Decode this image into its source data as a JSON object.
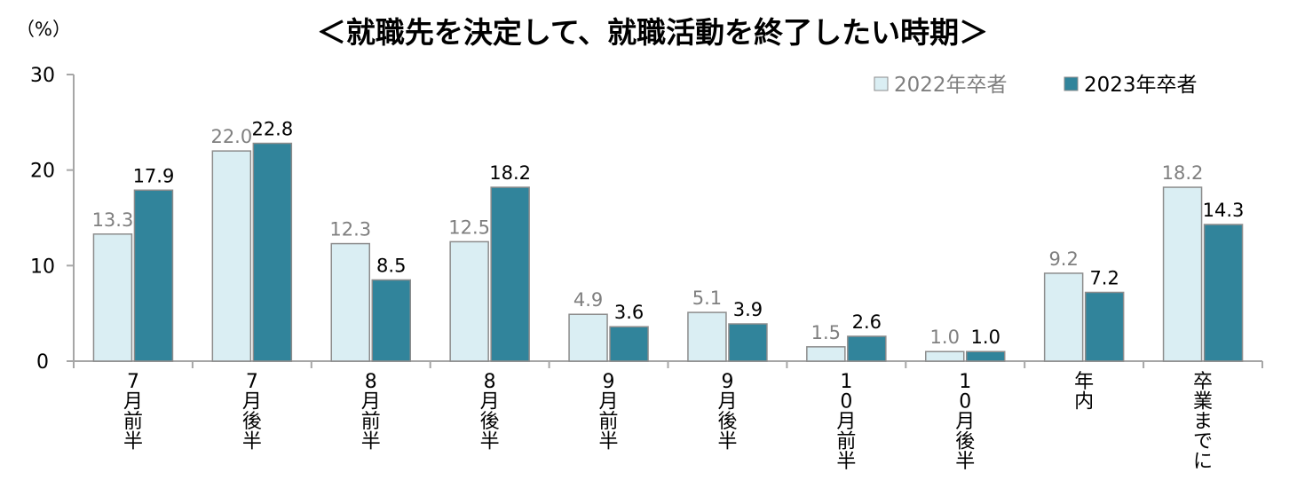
{
  "chart_data": {
    "type": "bar",
    "title": "＜就職先を決定して、就職活動を終了したい時期＞",
    "ylabel": "（%）",
    "xlabel": "",
    "ylim": [
      0,
      30
    ],
    "yticks": [
      0,
      10,
      20,
      30
    ],
    "grid": false,
    "legend_position": "top-right",
    "categories": [
      "7月前半",
      "7月後半",
      "8月前半",
      "8月後半",
      "9月前半",
      "9月後半",
      "10月前半",
      "10月後半",
      "年内",
      "卒業までに"
    ],
    "category_labels": [
      "7\n月\n前\n半",
      "7\n月\n後\n半",
      "8\n月\n前\n半",
      "8\n月\n後\n半",
      "9\n月\n前\n半",
      "9\n月\n後\n半",
      "1\n0\n月\n前\n半",
      "1\n0\n月\n後\n半",
      "年\n内",
      "卒\n業\nま\nで\nに"
    ],
    "series": [
      {
        "name": "2022年卒者",
        "values": [
          13.3,
          22.0,
          12.3,
          12.5,
          4.9,
          5.1,
          1.5,
          1.0,
          9.2,
          18.2
        ],
        "value_labels": [
          "13.3",
          "22.0",
          "12.3",
          "12.5",
          "4.9",
          "5.1",
          "1.5",
          "1.0",
          "9.2",
          "18.2"
        ]
      },
      {
        "name": "2023年卒者",
        "values": [
          17.9,
          22.8,
          8.5,
          18.2,
          3.6,
          3.9,
          2.6,
          1.0,
          7.2,
          14.3
        ],
        "value_labels": [
          "17.9",
          "22.8",
          "8.5",
          "18.2",
          "3.6",
          "3.9",
          "2.6",
          "1.0",
          "7.2",
          "14.3"
        ]
      }
    ]
  },
  "colors": {
    "series_2022": "#daeef3",
    "series_2023": "#31849b",
    "bar_edge": "#8c8c8c",
    "axis": "#a6a6a6",
    "label_2022": "#7f7f7f",
    "label_2023": "#000000",
    "text": "#000000"
  }
}
